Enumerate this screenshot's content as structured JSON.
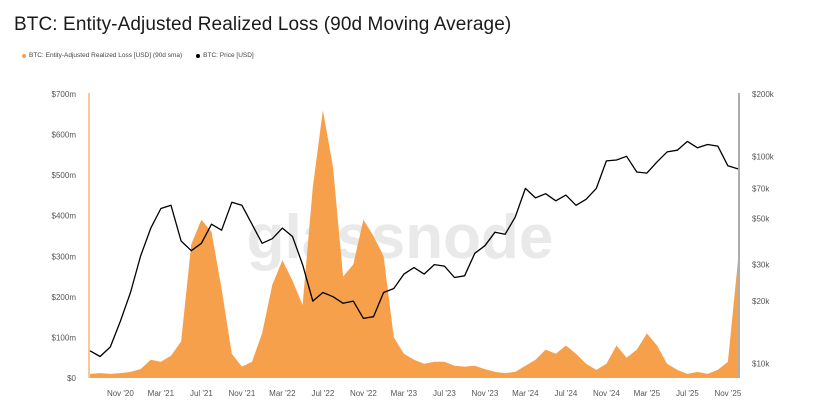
{
  "title": "BTC: Entity-Adjusted Realized Loss (90d Moving Average)",
  "watermark": "glassnode",
  "colors": {
    "loss": "#f7a04c",
    "price": "#000000",
    "axis": "#f0a64a"
  },
  "chart_data": {
    "type": "area",
    "title": "BTC: Entity-Adjusted Realized Loss (90d Moving Average)",
    "legend_position": "top-left",
    "x": [
      "2020-08",
      "2020-09",
      "2020-10",
      "2020-11",
      "2020-12",
      "2021-01",
      "2021-02",
      "2021-03",
      "2021-04",
      "2021-05",
      "2021-06",
      "2021-07",
      "2021-08",
      "2021-09",
      "2021-10",
      "2021-11",
      "2021-12",
      "2022-01",
      "2022-02",
      "2022-03",
      "2022-04",
      "2022-05",
      "2022-06",
      "2022-07",
      "2022-08",
      "2022-09",
      "2022-10",
      "2022-11",
      "2022-12",
      "2023-01",
      "2023-02",
      "2023-03",
      "2023-04",
      "2023-05",
      "2023-06",
      "2023-07",
      "2023-08",
      "2023-09",
      "2023-10",
      "2023-11",
      "2023-12",
      "2024-01",
      "2024-02",
      "2024-03",
      "2024-04",
      "2024-05",
      "2024-06",
      "2024-07",
      "2024-08",
      "2024-09",
      "2024-10",
      "2024-11",
      "2024-12",
      "2025-01",
      "2025-02",
      "2025-03",
      "2025-04",
      "2025-05",
      "2025-06",
      "2025-07",
      "2025-08",
      "2025-09",
      "2025-10",
      "2025-11",
      "2025-12"
    ],
    "x_ticks": [
      "Nov '20",
      "Mar '21",
      "Jul '21",
      "Nov '21",
      "Mar '22",
      "Jul '22",
      "Nov '22",
      "Mar '23",
      "Jul '23",
      "Nov '23",
      "Mar '24",
      "Jul '24",
      "Nov '24",
      "Mar '25",
      "Jul '25",
      "Nov '25"
    ],
    "series": [
      {
        "name": "BTC: Entity-Adjusted Realized Loss [USD] (90d sma)",
        "axis": "left",
        "values": [
          10,
          12,
          10,
          12,
          15,
          22,
          45,
          40,
          55,
          90,
          330,
          390,
          360,
          220,
          60,
          28,
          40,
          110,
          230,
          290,
          240,
          180,
          470,
          660,
          520,
          250,
          280,
          390,
          350,
          300,
          100,
          60,
          45,
          35,
          40,
          40,
          30,
          28,
          30,
          22,
          15,
          12,
          15,
          30,
          45,
          70,
          60,
          80,
          60,
          35,
          20,
          35,
          80,
          50,
          70,
          110,
          80,
          35,
          20,
          10,
          15,
          10,
          20,
          40,
          290
        ]
      },
      {
        "name": "BTC: Price [USD]",
        "axis": "right",
        "values": [
          11500,
          10800,
          12000,
          16000,
          22000,
          33000,
          45000,
          56000,
          58000,
          39000,
          35000,
          38000,
          47000,
          44000,
          60000,
          58000,
          47000,
          38000,
          40000,
          45000,
          41000,
          30000,
          20000,
          22000,
          21000,
          19500,
          20000,
          16500,
          16800,
          22000,
          23000,
          27000,
          29000,
          27000,
          30000,
          29500,
          26000,
          26500,
          34000,
          37000,
          43000,
          42000,
          51000,
          70000,
          63000,
          66000,
          61000,
          65000,
          58000,
          62000,
          70000,
          95000,
          96000,
          100000,
          84000,
          83000,
          94000,
          105000,
          107000,
          118000,
          110000,
          114000,
          112000,
          90000,
          87000
        ]
      }
    ],
    "y_left": {
      "label": "",
      "ticks": [
        "$0",
        "$100m",
        "$200m",
        "$300m",
        "$400m",
        "$500m",
        "$600m",
        "$700m"
      ],
      "range": [
        0,
        700
      ]
    },
    "y_right": {
      "label": "",
      "scale": "log",
      "ticks": [
        "$10k",
        "$20k",
        "$30k",
        "$50k",
        "$70k",
        "$100k",
        "$200k"
      ],
      "range": [
        8500,
        200000
      ]
    }
  }
}
